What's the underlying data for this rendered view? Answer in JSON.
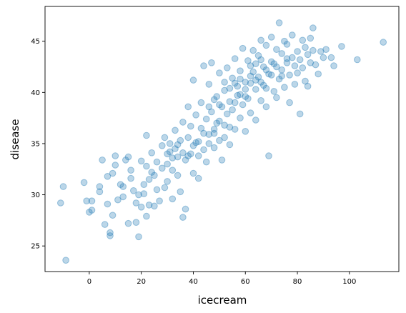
{
  "chart_data": {
    "type": "scatter",
    "title": "",
    "xlabel": "icecream",
    "ylabel": "disease",
    "xlim": [
      -17,
      119
    ],
    "ylim": [
      22.5,
      48.4
    ],
    "xticks": [
      0,
      20,
      40,
      60,
      80,
      100
    ],
    "yticks": [
      25,
      30,
      35,
      40,
      45
    ],
    "grid": false,
    "legend": "none",
    "marker": {
      "shape": "circle",
      "alpha": 0.3
    },
    "colors": {
      "point": "#1f77b4"
    },
    "points": [
      [
        -9,
        23.6
      ],
      [
        -11,
        29.2
      ],
      [
        -10,
        30.8
      ],
      [
        -2,
        31.2
      ],
      [
        -1,
        29.4
      ],
      [
        0,
        28.3
      ],
      [
        1,
        28.5
      ],
      [
        1,
        29.4
      ],
      [
        4,
        30.8
      ],
      [
        4,
        30.3
      ],
      [
        5,
        33.4
      ],
      [
        6,
        27.1
      ],
      [
        7,
        29.1
      ],
      [
        7,
        31.8
      ],
      [
        8,
        26.0
      ],
      [
        8,
        26.3
      ],
      [
        9,
        32.1
      ],
      [
        9,
        28.0
      ],
      [
        10,
        32.9
      ],
      [
        10,
        33.8
      ],
      [
        11,
        29.5
      ],
      [
        12,
        31.0
      ],
      [
        13,
        30.8
      ],
      [
        13,
        29.8
      ],
      [
        14,
        33.4
      ],
      [
        15,
        33.7
      ],
      [
        15,
        27.2
      ],
      [
        16,
        31.6
      ],
      [
        16,
        32.4
      ],
      [
        17,
        30.4
      ],
      [
        18,
        27.3
      ],
      [
        18,
        29.2
      ],
      [
        19,
        25.9
      ],
      [
        19,
        30.0
      ],
      [
        20,
        33.3
      ],
      [
        20,
        28.8
      ],
      [
        21,
        31.0
      ],
      [
        21,
        30.1
      ],
      [
        22,
        27.9
      ],
      [
        22,
        32.8
      ],
      [
        22,
        35.8
      ],
      [
        23,
        29.0
      ],
      [
        23,
        31.5
      ],
      [
        24,
        32.2
      ],
      [
        24,
        34.1
      ],
      [
        25,
        28.9
      ],
      [
        25,
        31.9
      ],
      [
        26,
        30.5
      ],
      [
        26,
        33.2
      ],
      [
        27,
        29.4
      ],
      [
        28,
        32.6
      ],
      [
        28,
        34.8
      ],
      [
        29,
        30.7
      ],
      [
        29,
        35.6
      ],
      [
        30,
        33.0
      ],
      [
        30,
        31.3
      ],
      [
        31,
        34.2
      ],
      [
        31,
        35.0
      ],
      [
        32,
        32.4
      ],
      [
        32,
        29.6
      ],
      [
        33,
        36.3
      ],
      [
        33,
        34.5
      ],
      [
        34,
        33.7
      ],
      [
        34,
        31.9
      ],
      [
        35,
        35.3
      ],
      [
        35,
        30.3
      ],
      [
        36,
        37.1
      ],
      [
        36,
        27.8
      ],
      [
        37,
        33.4
      ],
      [
        37,
        28.6
      ],
      [
        38,
        35.6
      ],
      [
        38,
        38.6
      ],
      [
        39,
        36.7
      ],
      [
        39,
        34.0
      ],
      [
        40,
        41.2
      ],
      [
        40,
        32.1
      ],
      [
        41,
        37.8
      ],
      [
        41,
        35.1
      ],
      [
        42,
        33.8
      ],
      [
        42,
        31.6
      ],
      [
        43,
        39.0
      ],
      [
        43,
        36.5
      ],
      [
        44,
        42.6
      ],
      [
        44,
        34.4
      ],
      [
        45,
        37.4
      ],
      [
        45,
        33.2
      ],
      [
        46,
        40.8
      ],
      [
        46,
        35.9
      ],
      [
        47,
        38.1
      ],
      [
        47,
        42.9
      ],
      [
        48,
        36.4
      ],
      [
        48,
        34.6
      ],
      [
        49,
        39.6
      ],
      [
        49,
        37.0
      ],
      [
        50,
        41.9
      ],
      [
        50,
        35.3
      ],
      [
        51,
        38.6
      ],
      [
        51,
        33.4
      ],
      [
        52,
        40.2
      ],
      [
        52,
        36.8
      ],
      [
        53,
        42.4
      ],
      [
        53,
        37.9
      ],
      [
        54,
        39.1
      ],
      [
        54,
        34.9
      ],
      [
        55,
        41.4
      ],
      [
        55,
        38.3
      ],
      [
        56,
        43.3
      ],
      [
        56,
        36.4
      ],
      [
        57,
        40.6
      ],
      [
        57,
        39.7
      ],
      [
        58,
        42.1
      ],
      [
        58,
        37.5
      ],
      [
        59,
        38.8
      ],
      [
        59,
        44.3
      ],
      [
        60,
        41.0
      ],
      [
        60,
        36.2
      ],
      [
        61,
        43.1
      ],
      [
        61,
        39.4
      ],
      [
        62,
        40.9
      ],
      [
        62,
        38.0
      ],
      [
        63,
        44.1
      ],
      [
        63,
        42.0
      ],
      [
        64,
        40.3
      ],
      [
        64,
        37.3
      ],
      [
        65,
        43.6
      ],
      [
        65,
        41.5
      ],
      [
        66,
        39.2
      ],
      [
        66,
        45.1
      ],
      [
        67,
        42.5
      ],
      [
        67,
        40.7
      ],
      [
        68,
        44.6
      ],
      [
        68,
        38.6
      ],
      [
        69,
        41.8
      ],
      [
        69,
        33.8
      ],
      [
        70,
        43.0
      ],
      [
        70,
        45.4
      ],
      [
        71,
        40.1
      ],
      [
        71,
        42.8
      ],
      [
        72,
        44.2
      ],
      [
        72,
        39.5
      ],
      [
        73,
        41.3
      ],
      [
        73,
        46.8
      ],
      [
        74,
        43.8
      ],
      [
        74,
        42.2
      ],
      [
        75,
        45.0
      ],
      [
        75,
        40.5
      ],
      [
        76,
        42.9
      ],
      [
        76,
        44.7
      ],
      [
        77,
        41.7
      ],
      [
        77,
        39.0
      ],
      [
        78,
        43.4
      ],
      [
        78,
        45.6
      ],
      [
        79,
        42.6
      ],
      [
        79,
        40.8
      ],
      [
        80,
        44.0
      ],
      [
        80,
        41.9
      ],
      [
        81,
        37.9
      ],
      [
        81,
        43.2
      ],
      [
        82,
        45.1
      ],
      [
        82,
        42.4
      ],
      [
        83,
        44.4
      ],
      [
        83,
        41.1
      ],
      [
        84,
        43.7
      ],
      [
        84,
        40.6
      ],
      [
        85,
        42.9
      ],
      [
        85,
        45.3
      ],
      [
        86,
        44.1
      ],
      [
        86,
        46.3
      ],
      [
        87,
        42.7
      ],
      [
        88,
        41.8
      ],
      [
        89,
        44.0
      ],
      [
        90,
        43.4
      ],
      [
        91,
        44.2
      ],
      [
        93,
        43.4
      ],
      [
        94,
        42.6
      ],
      [
        97,
        44.5
      ],
      [
        103,
        43.2
      ],
      [
        113,
        44.9
      ],
      [
        46,
        35.0
      ],
      [
        48,
        36.0
      ],
      [
        50,
        37.2
      ],
      [
        52,
        35.6
      ],
      [
        54,
        36.6
      ],
      [
        56,
        39.0
      ],
      [
        58,
        39.8
      ],
      [
        60,
        40.3
      ],
      [
        62,
        41.6
      ],
      [
        64,
        42.8
      ],
      [
        66,
        41.0
      ],
      [
        68,
        42.2
      ],
      [
        70,
        41.7
      ],
      [
        72,
        42.5
      ],
      [
        74,
        41.6
      ],
      [
        76,
        43.3
      ],
      [
        44,
        36.0
      ],
      [
        42,
        35.2
      ],
      [
        40,
        34.8
      ],
      [
        38,
        33.8
      ],
      [
        36,
        34.1
      ],
      [
        34,
        34.9
      ],
      [
        32,
        33.6
      ],
      [
        30,
        34.0
      ],
      [
        46,
        38.6
      ],
      [
        48,
        39.3
      ],
      [
        50,
        38.8
      ],
      [
        52,
        41.0
      ],
      [
        54,
        40.4
      ],
      [
        56,
        40.9
      ],
      [
        58,
        41.3
      ],
      [
        60,
        39.6
      ],
      [
        62,
        42.6
      ],
      [
        64,
        41.2
      ],
      [
        66,
        43.2
      ],
      [
        68,
        40.4
      ]
    ]
  }
}
